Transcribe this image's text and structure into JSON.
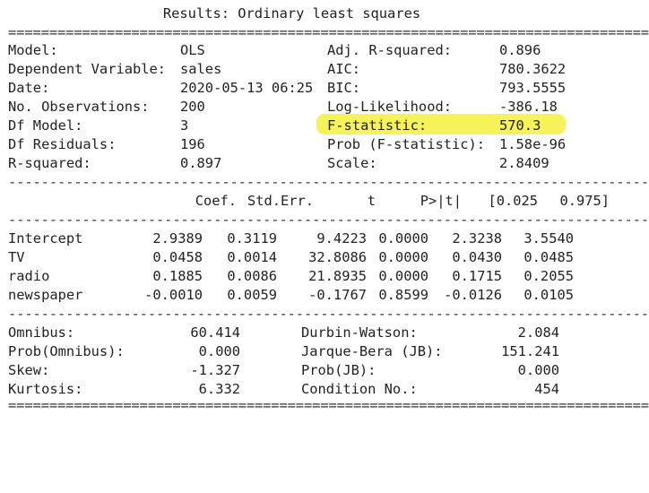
{
  "title": "Results: Ordinary least squares",
  "highlight_color": "#f6f35a",
  "summary_left": [
    {
      "label": "Model:",
      "value": "OLS"
    },
    {
      "label": "Dependent Variable:",
      "value": "sales"
    },
    {
      "label": "Date:",
      "value": "2020-05-13 06:25"
    },
    {
      "label": "No. Observations:",
      "value": "200"
    },
    {
      "label": "Df Model:",
      "value": "3"
    },
    {
      "label": "Df Residuals:",
      "value": "196"
    },
    {
      "label": "R-squared:",
      "value": "0.897"
    }
  ],
  "summary_right": [
    {
      "label": "Adj. R-squared:",
      "value": "0.896"
    },
    {
      "label": "AIC:",
      "value": "780.3622"
    },
    {
      "label": "BIC:",
      "value": "793.5555"
    },
    {
      "label": "Log-Likelihood:",
      "value": "-386.18"
    },
    {
      "label": "F-statistic:",
      "value": "570.3",
      "highlighted": true
    },
    {
      "label": "Prob (F-statistic):",
      "value": "1.58e-96"
    },
    {
      "label": "Scale:",
      "value": "2.8409"
    }
  ],
  "coef_table": {
    "headers": [
      "Coef.",
      "Std.Err.",
      "t",
      "P>|t|",
      "[0.025",
      "0.975]"
    ],
    "rows": [
      {
        "name": "Intercept",
        "values": [
          "2.9389",
          "0.3119",
          "9.4223",
          "0.0000",
          "2.3238",
          "3.5540"
        ]
      },
      {
        "name": "TV",
        "values": [
          "0.0458",
          "0.0014",
          "32.8086",
          "0.0000",
          "0.0430",
          "0.0485"
        ]
      },
      {
        "name": "radio",
        "values": [
          "0.1885",
          "0.0086",
          "21.8935",
          "0.0000",
          "0.1715",
          "0.2055"
        ]
      },
      {
        "name": "newspaper",
        "values": [
          "-0.0010",
          "0.0059",
          "-0.1767",
          "0.8599",
          "-0.0126",
          "0.0105"
        ]
      }
    ]
  },
  "diagnostics_left": [
    {
      "label": "Omnibus:",
      "value": "60.414"
    },
    {
      "label": "Prob(Omnibus):",
      "value": "0.000"
    },
    {
      "label": "Skew:",
      "value": "-1.327"
    },
    {
      "label": "Kurtosis:",
      "value": "6.332"
    }
  ],
  "diagnostics_right": [
    {
      "label": "Durbin-Watson:",
      "value": "2.084"
    },
    {
      "label": "Jarque-Bera (JB):",
      "value": "151.241"
    },
    {
      "label": "Prob(JB):",
      "value": "0.000"
    },
    {
      "label": "Condition No.:",
      "value": "454"
    }
  ]
}
